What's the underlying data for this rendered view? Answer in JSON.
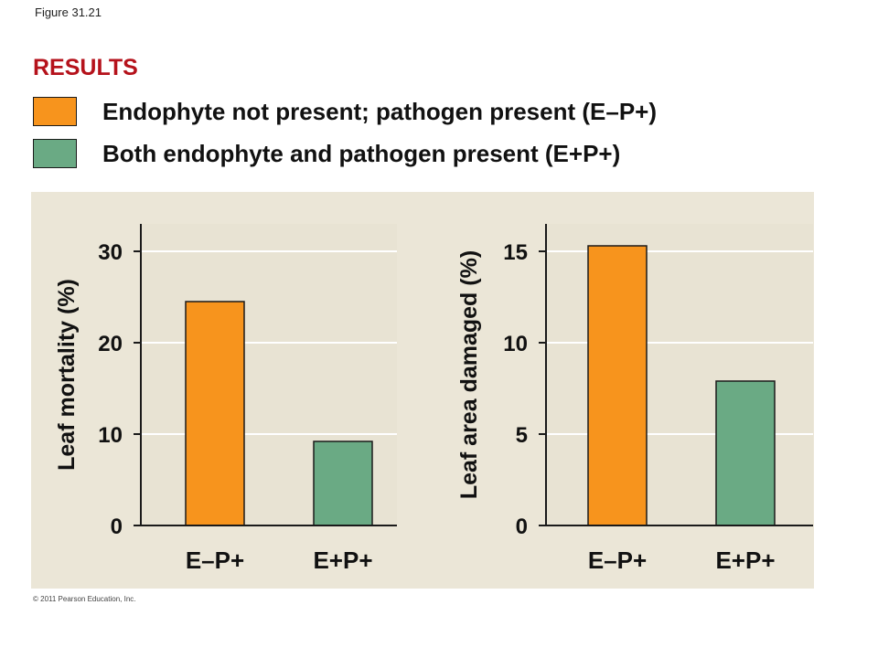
{
  "figure_label": "Figure 31.21",
  "results_label": "RESULTS",
  "colors": {
    "orange": "#f7941d",
    "green": "#6aaa84",
    "results_red": "#b5121b"
  },
  "legend": [
    {
      "label": "Endophyte not present; pathogen present (E–P+)",
      "color": "#f7941d"
    },
    {
      "label": "Both endophyte and pathogen present (E+P+)",
      "color": "#6aaa84"
    }
  ],
  "copyright": "© 2011 Pearson Education, Inc.",
  "chart_data": [
    {
      "type": "bar",
      "ylabel": "Leaf mortality (%)",
      "ylim": [
        0,
        33
      ],
      "yticks": [
        0,
        10,
        20,
        30
      ],
      "categories": [
        "E–P+",
        "E+P+"
      ],
      "values": [
        24.5,
        9.2
      ],
      "colors": [
        "#f7941d",
        "#6aaa84"
      ],
      "grid": true
    },
    {
      "type": "bar",
      "ylabel": "Leaf area damaged (%)",
      "ylim": [
        0,
        16.5
      ],
      "yticks": [
        0,
        5,
        10,
        15
      ],
      "categories": [
        "E–P+",
        "E+P+"
      ],
      "values": [
        15.3,
        7.9
      ],
      "colors": [
        "#f7941d",
        "#6aaa84"
      ],
      "grid": true
    }
  ]
}
